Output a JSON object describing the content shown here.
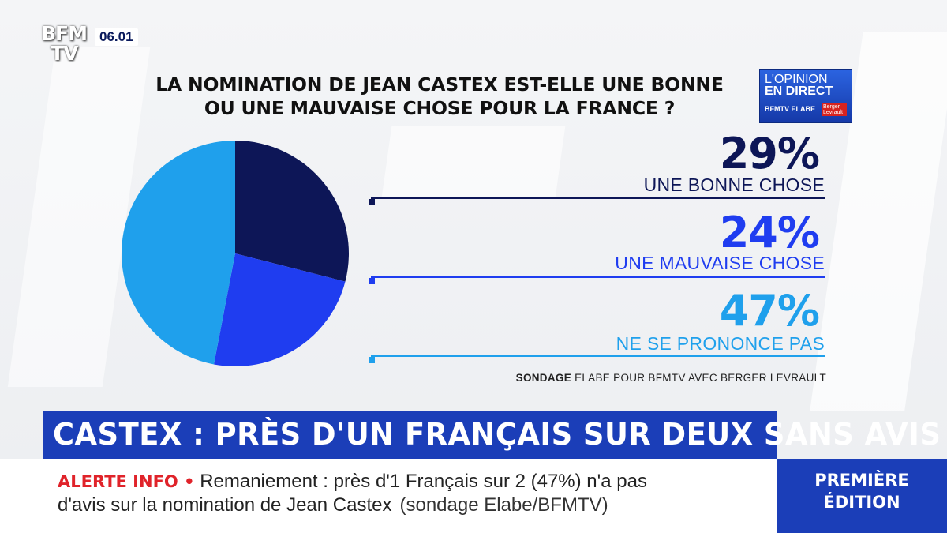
{
  "channel": {
    "logo_line1": "BFM",
    "logo_line2": "TV",
    "time": "06.01"
  },
  "badge": {
    "line1": "L'OPINION",
    "line2": "EN DIRECT",
    "line3": "BFMTV ELABE",
    "partner": "Berger Levrault"
  },
  "chart_data": {
    "type": "pie",
    "title_lines": [
      "LA NOMINATION DE JEAN CASTEX EST-ELLE UNE BONNE",
      "OU UNE MAUVAISE CHOSE POUR LA FRANCE ?"
    ],
    "categories": [
      "UNE BONNE CHOSE",
      "UNE MAUVAISE CHOSE",
      "NE SE PRONONCE PAS"
    ],
    "values": [
      29,
      24,
      47
    ],
    "value_labels": [
      "29%",
      "24%",
      "47%"
    ],
    "colors": [
      "#0d1657",
      "#1f3df0",
      "#1fa0ec"
    ],
    "source_prefix": "SONDAGE",
    "source_text": "ELABE POUR BFMTV AVEC BERGER LEVRAULT"
  },
  "headline": "CASTEX : PRÈS D'UN FRANÇAIS SUR DEUX SANS AVIS",
  "ticker": {
    "alert_label": "ALERTE INFO •",
    "line1": "Remaniement : près d'1 Français sur 2 (47%) n'a pas",
    "line2": "d'avis sur la nomination de Jean Castex",
    "source": "(sondage Elabe/BFMTV)"
  },
  "show": {
    "line1": "PREMIÈRE",
    "line2": "ÉDITION"
  }
}
